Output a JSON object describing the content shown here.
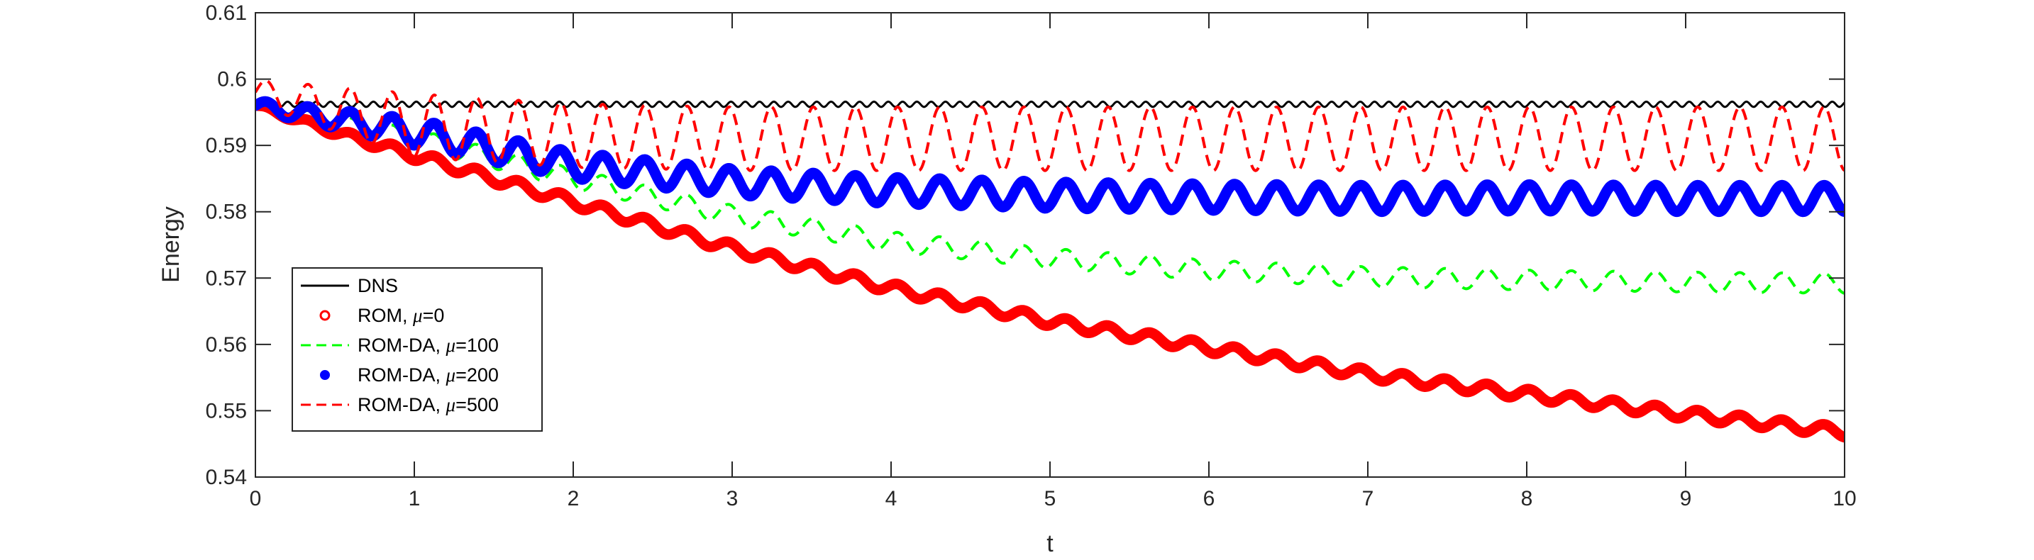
{
  "chart_data": {
    "type": "line",
    "title": "",
    "xlabel": "t",
    "ylabel": "Energy",
    "xlim": [
      0,
      10
    ],
    "ylim": [
      0.54,
      0.61
    ],
    "xticks": [
      "0",
      "1",
      "2",
      "3",
      "4",
      "5",
      "6",
      "7",
      "8",
      "9",
      "10"
    ],
    "yticks": [
      "0.54",
      "0.55",
      "0.56",
      "0.57",
      "0.58",
      "0.59",
      "0.6",
      "0.61"
    ],
    "grid": false,
    "legend_position": "left",
    "series": [
      {
        "name": "DNS",
        "color": "#000000",
        "style": "solid",
        "x": [
          0,
          0.1,
          1,
          2,
          3,
          4,
          5,
          6,
          7,
          8,
          9,
          10
        ],
        "y": [
          0.596,
          0.5962,
          0.5962,
          0.5962,
          0.5962,
          0.5962,
          0.5962,
          0.5962,
          0.5962,
          0.5962,
          0.5962,
          0.5962
        ],
        "oscillation_amplitude": 0.0004
      },
      {
        "name": "ROM, μ=0",
        "legend_prefix": "ROM, ",
        "legend_suffix": "=0",
        "color": "#ff0000",
        "style": "markers",
        "x": [
          0,
          0.5,
          1,
          2,
          3,
          4,
          5,
          6,
          7,
          8,
          9,
          10
        ],
        "y": [
          0.596,
          0.592,
          0.5885,
          0.5815,
          0.5745,
          0.5685,
          0.5635,
          0.5595,
          0.5555,
          0.5525,
          0.5495,
          0.5468
        ],
        "oscillation_amplitude": 0.0008
      },
      {
        "name": "ROM-DA, μ=100",
        "legend_prefix": "ROM-DA, ",
        "legend_suffix": "=100",
        "color": "#00ff00",
        "style": "dashed",
        "x": [
          0,
          1,
          2,
          3,
          4,
          5,
          6,
          7,
          8,
          9,
          10
        ],
        "y": [
          0.596,
          0.591,
          0.585,
          0.5795,
          0.5755,
          0.573,
          0.5712,
          0.5702,
          0.5697,
          0.5694,
          0.5692
        ],
        "oscillation_amplitude": 0.0015
      },
      {
        "name": "ROM-DA, μ=200",
        "legend_prefix": "ROM-DA, ",
        "legend_suffix": "=200",
        "color": "#0000ff",
        "style": "markers",
        "x": [
          0,
          1,
          2,
          3,
          4,
          5,
          6,
          7,
          8,
          9,
          10
        ],
        "y": [
          0.596,
          0.592,
          0.587,
          0.5845,
          0.5832,
          0.5825,
          0.5822,
          0.582,
          0.5821,
          0.582,
          0.582
        ],
        "oscillation_amplitude": 0.002
      },
      {
        "name": "ROM-DA, μ=500",
        "legend_prefix": "ROM-DA, ",
        "legend_suffix": "=500",
        "color": "#ff0000",
        "style": "dashed",
        "x": [
          0,
          1,
          2,
          3,
          4,
          5,
          6,
          7,
          8,
          9,
          10
        ],
        "y": [
          0.598,
          0.593,
          0.5915,
          0.591,
          0.591,
          0.591,
          0.591,
          0.591,
          0.591,
          0.591,
          0.591
        ],
        "oscillation_amplitude": 0.0048
      }
    ]
  }
}
